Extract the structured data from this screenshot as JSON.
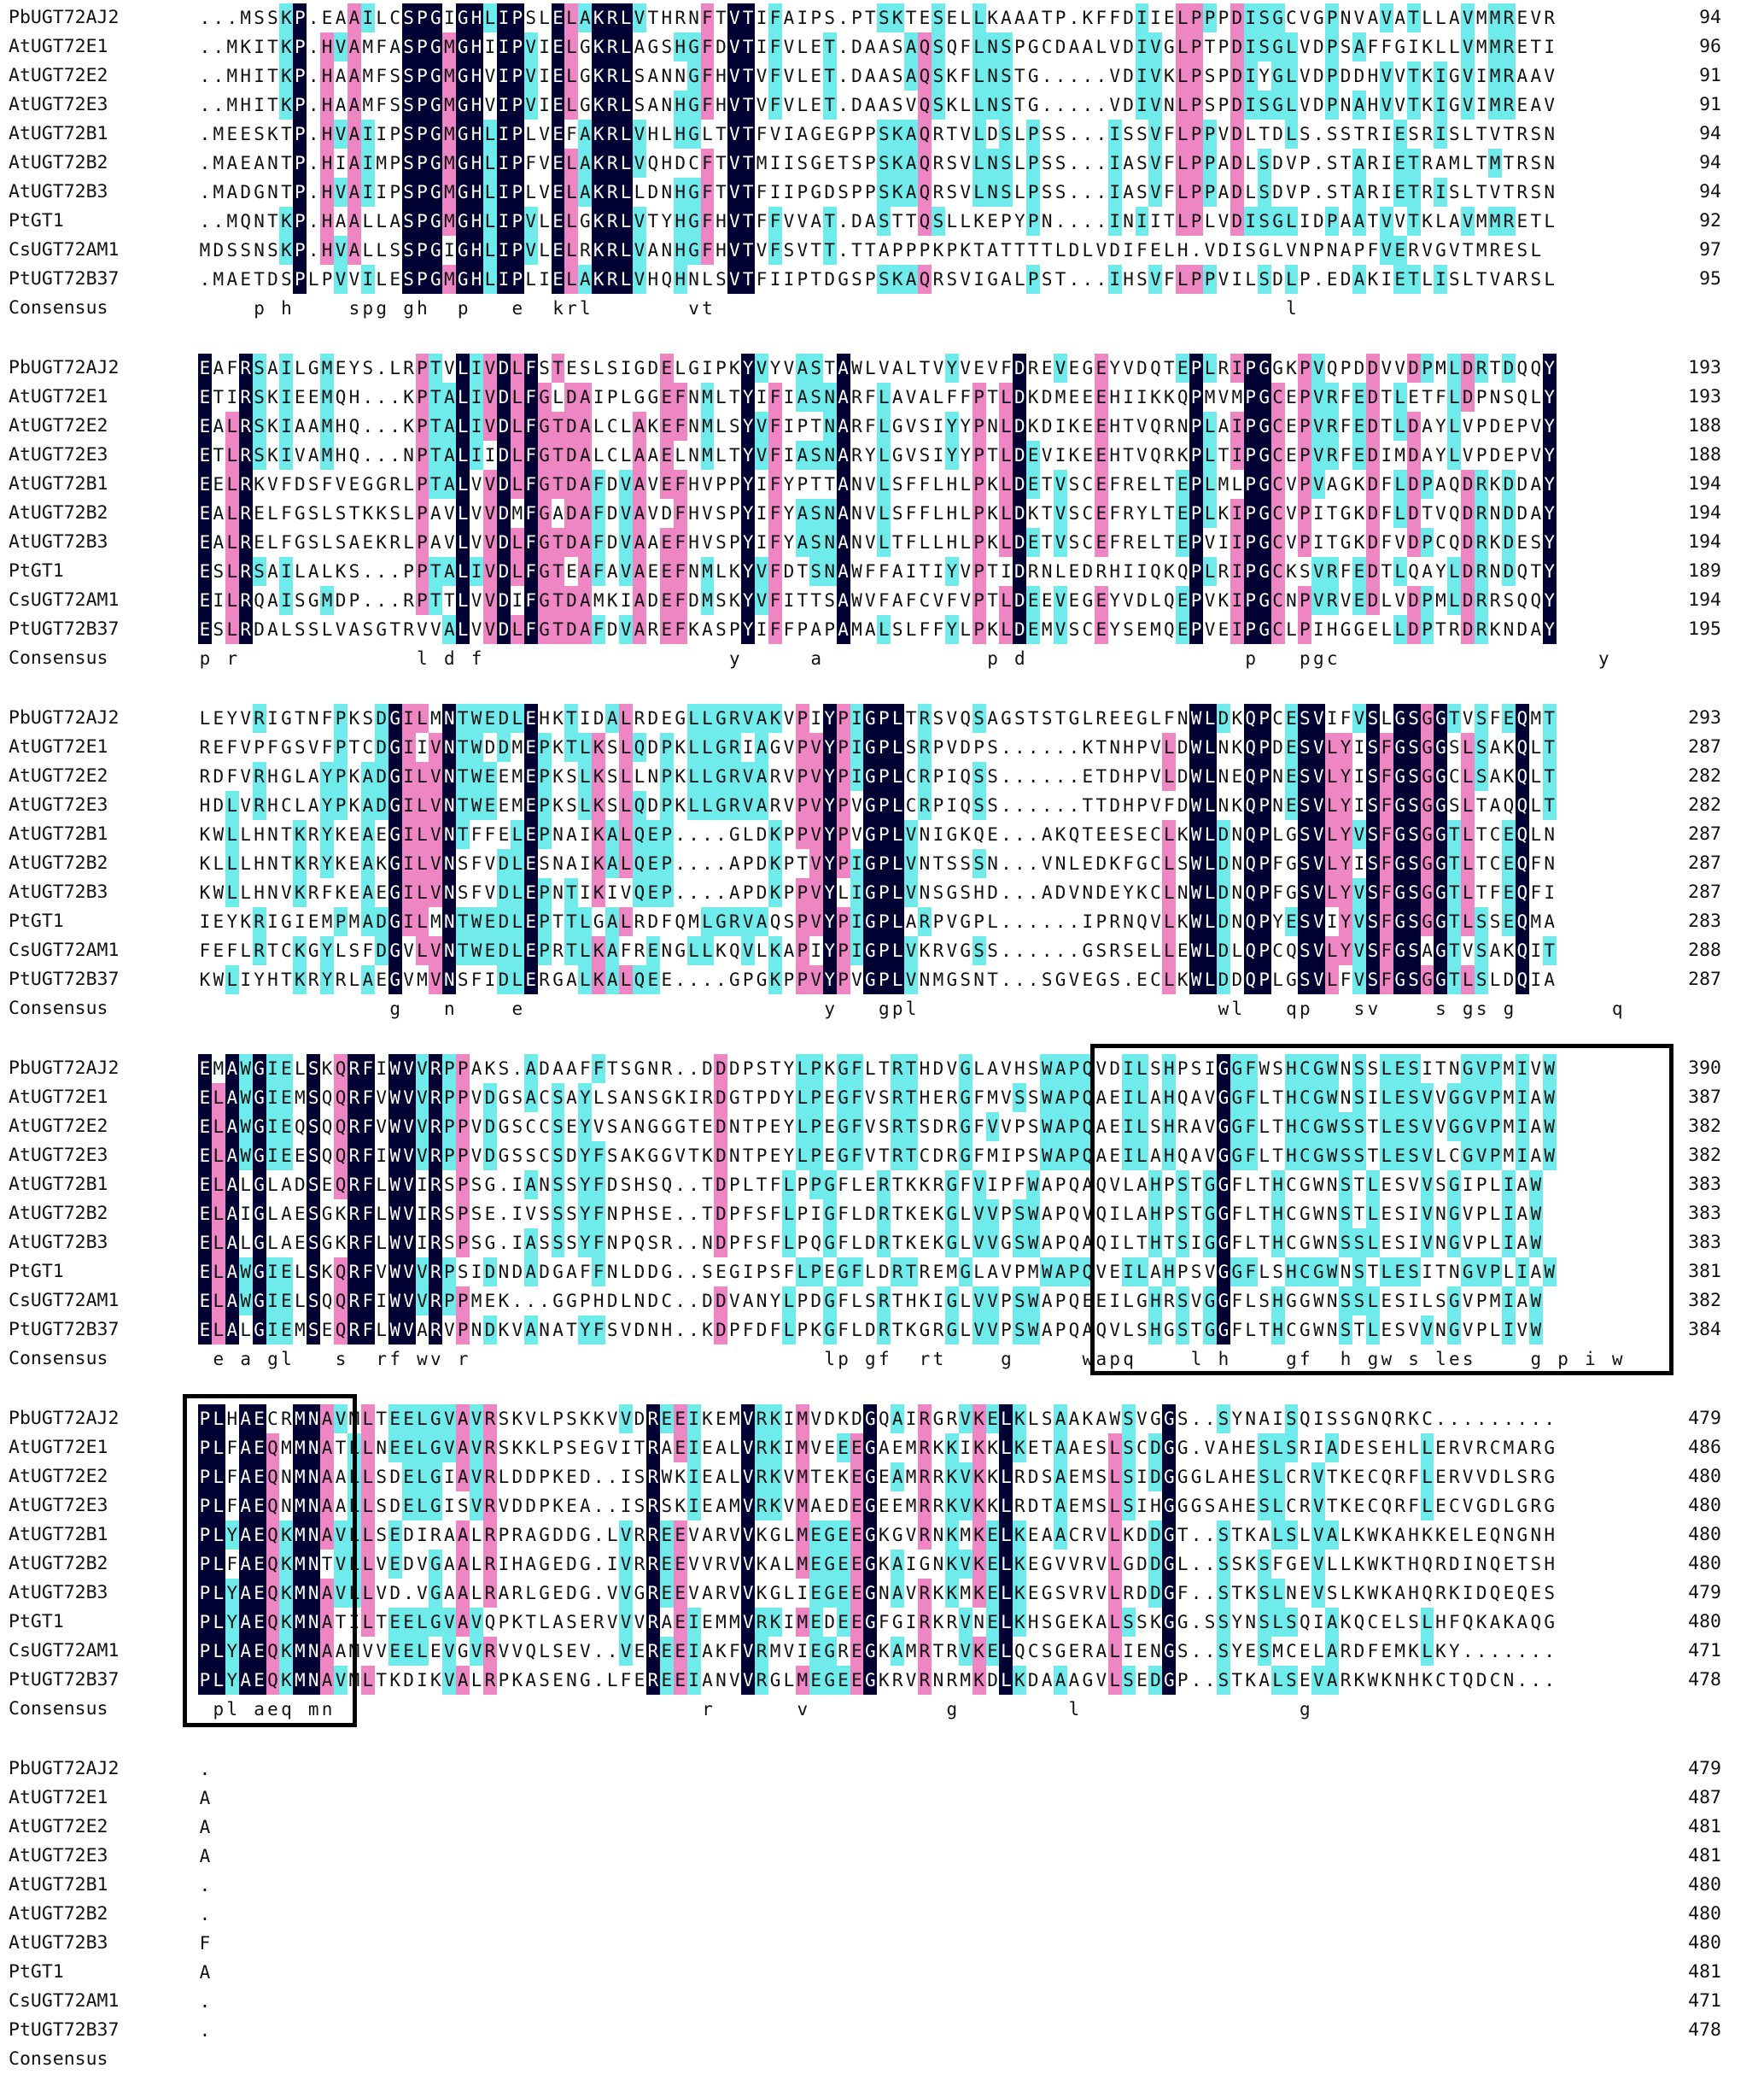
{
  "species": [
    "PbUGT72AJ2",
    "AtUGT72E1",
    "AtUGT72E2",
    "AtUGT72E3",
    "AtUGT72B1",
    "AtUGT72B2",
    "AtUGT72B3",
    "PtGT1",
    "CsUGT72AM1",
    "PtUGT72B37"
  ],
  "consensus_label": "Consensus",
  "colors": {
    "identical": "#000033",
    "high": "#ef86c4",
    "low": "#70ebeb"
  },
  "blocks": [
    {
      "seqs": [
        "...MSSKP.EAAILCSPGIGHLIPSLELAKRLVTHRNFTVTIFAIPS.PTSKTESELLKAAATP.KFFDIIELPPPDISGCVGPNVAVATLLAVMMREVR",
        "..MKITKP.HVAMFASPGMGHIIPVIELGKRLAGSHGFDVTIFVLET.DAASAQSQFLNSPGCDAALVDIVGLPTPDISGLVDPSAFFGIKLLVMMRETI",
        "..MHITKP.HAAMFSSPGMGHVIPVIELGKRLSANNGFHVTVFVLET.DAASAQSKFLNSTG.....VDIVKLPSPDIYGLVDPDDHVVTKIGVIMRAAV",
        "..MHITKP.HAAMFSSPGMGHVIPVIELGKRLSANHGFHVTVFVLET.DAASVQSKLLNSTG.....VDIVNLPSPDISGLVDPNAHVVTKIGVIMREAV",
        ".MEESKTP.HVAIIPSPGMGHLIPLVEFAKRLVHLHGLTVTFVIAGEGPPSKAQRTVLDSLPSS...ISSVFLPPVDLTDLS.SSTRIESRISLTVTRSN",
        ".MAEANTP.HIAIMPSPGMGHLIPFVELAKRLVQHDCFTVTMIISGETSPSKAQRSVLNSLPSS...IASVFLPPADLSDVP.STARIETRAMLTMTRSN",
        ".MADGNTP.HVAIIPSPGMGHLIPLVELAKRLLDNHGFTVTFIIPGDSPPSKAQRSVLNSLPSS...IASVFLPPADLSDVP.STARIETRISLTVTRSN",
        "..MQNTKP.HAALLASPGMGHLIPVLELGKRLVTYHGFHVTFFVVAT.DASTTQSLLKEPYPN....INIITLPLVDISGLIDPAATVVTKLAVMMRETL",
        "MDSSNSKP.HVALLSSPGIGHLIPVLELRKRLVANHGFHVTVFSVTT.TTAPPPKPKTATTTTLDLVDIFELH.VDISGLVNPNAPFVERVGVTMRESL",
        ".MAETDSPLPVVILESPGMGHLIPLIELAKRLVHQHNLSVTFIIPTDGSPSKAQRSVIGALPST...IHSVFLPPVILSDLP.EDAKIETLISLTVARSL"
      ],
      "consensus": "    p h    spg gh  p   e  krl       vt                                          l",
      "ends": [
        "94",
        "96",
        "91",
        "91",
        "94",
        "94",
        "94",
        "92",
        "97",
        "95"
      ]
    },
    {
      "seqs": [
        "EAFRSAILGMEYS.LRPTVLIVDLFSTESLSIGDELGIPKYVYVASTAWLVALTVYVEVFDREVEGEYVDQTEPLRIPGGKPVQPDDVVDPMLDRTDQQY",
        "ETIRSKIEEMQH...KPTALIVDLFGLDAIPLGGEFNMLTYIFIASNARFLAVALFFPTLDKDMEEEHIIKKQPMVMPGCEPVRFEDTLETFLDPNSQLY",
        "EALRSKIAAMHQ...KPTALIVDLFGTDALCLAKEFNMLSYVFIPTNARFLGVSIYYPNLDKDIKEEHTVQRNPLAIPGCEPVRFEDTLDAYLVPDEPVY",
        "ETLRSKIVAMHQ...NPTALIIDLFGTDALCLAAELNMLTYVFIASNARYLGVSIYYPTLDEVIKEEHTVQRKPLTIPGCEPVRFEDIMDAYLVPDEPVY",
        "EELRKVFDSFVEGGRLPTALVVDLFGTDAFDVAVEFHVPPYIFYPTTANVLSFFLHLPKLDETVSCEFRELTEPLMLPGCVPVAGKDFLDPAQDRKDDAY",
        "EALRELFGSLSTKKSLPAVLVVDMFGADAFDVAVDFHVSPYIFYASNANVLSFFLHLPKLDKTVSCEFRYLTEPLKIPGCVPITGKDFLDTVQDRNDDAY",
        "EALRELFGSLSAEKRLPAVLVVDLFGTDAFDVAAEFHVSPYIFYASNANVLTFLLHLPKLDETVSCEFRELTEPVIIPGCVPITGKDFVDPCQDRKDESY",
        "ESLRSAILALKS...PPTALIVDLFGTEAFAVAEEFNMLKYVFDTSNAWFFAITIYVPTIDRNLEDRHIIQKQPLRIPGCKSVRFEDTLQAYLDRNDQTY",
        "EILRQAISGMDP...RPTTLVVDIFGTDAMKIADEFDMSKYVFITTSAWVFAFCVFVPTLDEEVEGEYVDLQEPVKIPGCNPVRVEDLVDPMLDRRSQQY",
        "ESLRDALSSLVASGTRVVALVVDLFGTDAFDVAREFKASPYIFFPAPAMALSLFFYLPKLDEMVSCEYSEMQEPVEIPGCLPIHGGELLDPTRDRKNDAY"
      ],
      "consensus": "p r             l d f                  y     a            p d                p   pgc                   y",
      "ends": [
        "193",
        "193",
        "188",
        "188",
        "194",
        "194",
        "194",
        "189",
        "194",
        "195"
      ]
    },
    {
      "seqs": [
        "LEYVRIGTNFPKSDGILMNTWEDLEHKTIDALRDEGLLGRVAKVPIYPIGPLTRSVQSAGSTSTGLREEGLFNWLDKQPCESVIFVSLGSGGTVSFEQMT",
        "REFVPFGSVFPTCDGIIVNTWDDMEPKTLKSLQDPKLLGRIAGVPVYPIGPLSRPVDPS......KTNHPVLDWLNKQPDESVLYISFGSGGSLSAKQLT",
        "RDFVRHGLAYPKADGILVNTWEEMEPKSLKSLLNPKLLGRVARVPVYPIGPLCRPIQSS......ETDHPVLDWLNEQPNESVLYISFGSGGCLSAKQLT",
        "HDLVRHCLAYPKADGILVNTWEEMEPKSLKSLQDPKLLGRVARVPVYPVGPLCRPIQSS......TTDHPVFDWLNKQPNESVLYISFGSGGSLTAQQLT",
        "KWLLHNTKRYKEAEGILVNTFFELEPNAIKALQEP....GLDKPPVYPVGPLVNIGKQE...AKQTEESECLKWLDNQPLGSVLYVSFGSGGTLTCEQLN",
        "KLLLHNTKRYKEAKGILVNSFVDLESNAIKALQEP....APDKPTVYPIGPLVNTSSSN...VNLEDKFGCLSWLDNQPFGSVLYISFGSGGTLTCEQFN",
        "KWLLHNVKRFKEAEGILVNSFVDLEPNTIKIVQEP....APDKPPVYLIGPLVNSGSHD...ADVNDEYKCLNWLDNQPFGSVLYVSFGSGGTLTFEQFI",
        "IEYKRIGIEMPMADGILMNTWEDLEPTTLGALRDFQMLGRVAQSPVYPIGPLARPVGPL......IPRNQVLKWLDNQPYESVIYVSFGSGGTLSSEQMA",
        "FEFLRTCKGYLSFDGVLVNTWEDLEPRTLKAFRENGLLKQVLKAPIYPIGPLVKRVGSS......GSRSELLEWLDLQPCQSVLYVSFGSAGTVSAKQIT",
        "KWLIYHTKRYRLAEGVMVNSFIDLERGALKALQEE....GPGKPPVYPVGPLVNMGSNT...SGVEGS.ECLKWLDDQPLGSVLFVSFGSGGTLSLDQIA"
      ],
      "consensus": "              g   n    e                      y   gpl                      wl   qp   sv    s gs g       q",
      "ends": [
        "293",
        "287",
        "282",
        "282",
        "287",
        "287",
        "287",
        "283",
        "288",
        "287"
      ]
    },
    {
      "seqs": [
        "EMAWGIELSKQRFIWVVRPPAKS.ADAAFFTSGNR..DDDPSTYLPKGFLTRTHDVGLAVHSWAPQVDILSHPSIGGFWSHCGWNSSLESITNGVPMIVW",
        "ELAWGIEMSQQRFVWVVRPPVDGSACSAYLSANSGKIRDGTPDYLPEGFVSRTHERGFMVSSWAPQAEILAHQAVGGFLTHCGWNSILESVVGGVPMIAW",
        "ELAWGIEQSQQRFVWVVRPPVDGSCCSEYVSANGGGTEDNTPEYLPEGFVSRTSDRGFVVPSWAPQAEILSHRAVGGFLTHCGWSSTLESVVGGVPMIAW",
        "ELAWGIEESQQRFIWVVRPPVDGSSCSDYFSAKGGVTKDNTPEYLPEGFVTRTCDRGFMIPSWAPQAEILAHQAVGGFLTHCGWSSTLESVLCGVPMIAW",
        "ELALGLADSEQRFLWVIRSPSG.IANSSYFDSHSQ..TDPLTFLPPGFLERTKKRGFVIPFWAPQAQVLAHPSTGGFLTHCGWNSTLESVVSGIPLIAW",
        "ELAIGLAESGKRFLWVIRSPSE.IVSSSYFNPHSE..TDPFSFLPIGFLDRTKEKGLVVPSWAPQVQILAHPSTGGFLTHCGWNSTLESIVNGVPLIAW",
        "ELALGLAESGKRFLWVIRSPSG.IASSSYFNPQSR..NDPFSFLPQGFLDRTKEKGLVVGSWAPQAQILTHTSIGGFLTHCGWNSSLESIVNGVPLIAW",
        "ELAWGIELSKQRFVWVVRPSIDNDADGAFFNLDDG..SEGIPSFLPEGFLDRTREMGLAVPMWAPQVEILAHPSVGGFLSHCGWNSTLESITNGVPLIAW",
        "ELAWGIELSQQRFIWVVRPPMEK...GGPHDLNDC..DDVANYLPDGFLSRTHKIGLVVPSWAPQEEILGHRSVGGFLSHGGWNSSLESILSGVPMIAW",
        "ELALGIEMSEQRFLWVARVPNDKVANATYFSVDNH..KDPFDFLPKGFLDRTKGRGLVVPSWAPQAQVLSHGSTGGFLTHCGWNSTLESVVNGVPLIVW"
      ],
      "consensus": " e a gl   s  rf wv r                          lp gf  rt    g     wapq    l h    gf  h gw s les    g p i w",
      "ends": [
        "390",
        "387",
        "382",
        "382",
        "383",
        "383",
        "383",
        "381",
        "382",
        "384"
      ]
    },
    {
      "seqs": [
        "PLHAECRMNAVMLTEELGVAVRSKVLPSKKVVDREEIKEMVRKIMVDKDGQAIRGRVKELKLSAAKAWSVGGS..SYNAISQISSGNQRKC.........",
        "PLFAEQMMNATLLNEELGVAVRSKKLPSEGVITRAEIEALVRKIMVEEEGAEMRKKIKKLKETAAESLSCDGG.VAHESLSRIADESEHLLERVRCMARG",
        "PLFAEQNMNAALLSDELGIAVRLDDPKED..ISRWKIEALVRKVMTEKEGEAMRRKVKKLRDSAEMSLSIDGGGLAHESLCRVTKECQRFLERVVDLSRG",
        "PLFAEQNMNAALLSDELGISVRVDDPKEA..ISRSKIEAMVRKVMAEDEGEEMRRKVKKLRDTAEMSLSIHGGGSAHESLCRVTKECQRFLECVGDLGRG",
        "PLYAEQKMNAVLLSEDIRAALRPRAGDDG.LVRREEVARVVKGLMEGEEGKGVRNKMKELKEAACRVLKDDGT..STKALSLVALKWKAHKKELEQNGNH",
        "PLFAEQKMNTVLLVEDVGAALRIHAGEDG.IVRREEVVRVVKALMEGEEGKAIGNKVKELKEGVVRVLGDDGL..SSKSFGEVLLKWKTHQRDINQETSH",
        "PLYAEQKMNAVLLVD.VGAALRARLGEDG.VVGREEVARVVKGLIEGEEGNAVRKKMKELKEGSVRVLRDDGF..STKSLNEVSLKWKAHQRKIDQEQES",
        "PLYAEQKMNATILTEELGVAVQPKTLASERVVVRAEIEMMVRKIMEDEEGFGIRKRVNELKHSGEKALSSKGG.SSYNSLSQIAKQCELSLHFQKAKAQG",
        "PLYAEQKMNAAMVVEELEVGVRVVQLSEV..VEREEIAKFVRMVIEGREGKAMRTRVKELQCSGERALIENGS..SYESMCELARDFEMKLKY.......",
        "PLYAEQKMNAVMLTKDIKVALRPKASENG.LFEREEIANVVRGLMEGEEGKRVRNRMKDLKDAAAGVLSEDGP..STKALSEVARKWKNHKCTQDCN..."
      ],
      "consensus": " pl aeq mn                           r      v          g        l                g",
      "ends": [
        "479",
        "486",
        "480",
        "480",
        "480",
        "480",
        "479",
        "480",
        "471",
        "478"
      ]
    },
    {
      "seqs": [
        ".",
        "A",
        "A",
        "A",
        ".",
        ".",
        "F",
        "A",
        ".",
        "."
      ],
      "consensus": "",
      "ends": [
        "479",
        "487",
        "481",
        "481",
        "480",
        "480",
        "480",
        "481",
        "471",
        "478"
      ]
    }
  ]
}
